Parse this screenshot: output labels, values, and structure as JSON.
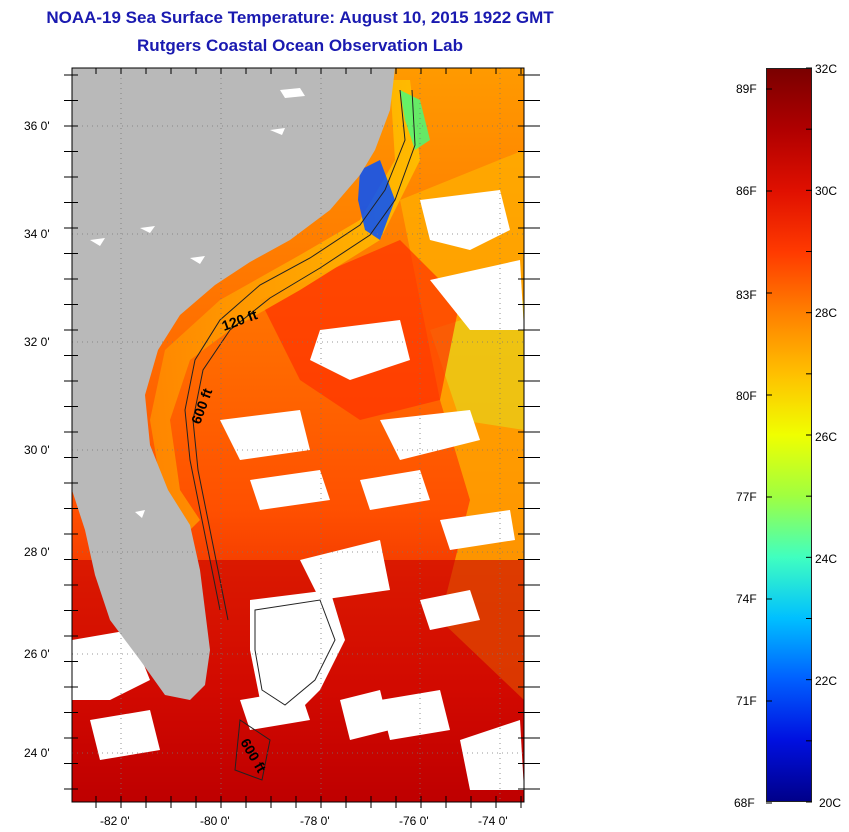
{
  "header": {
    "title": "NOAA-19 Sea Surface Temperature:  August 10, 2015 1922 GMT",
    "subtitle": "Rutgers Coastal Ocean Observation Lab"
  },
  "map": {
    "lat_labels": [
      "36 0'",
      "34 0'",
      "32 0'",
      "30 0'",
      "28 0'",
      "26 0'",
      "24 0'"
    ],
    "lon_labels": [
      "-82 0'",
      "-80 0'",
      "-78 0'",
      "-76 0'",
      "-74 0'"
    ],
    "contour_labels": [
      "120 ft",
      "600 ft",
      "600 ft"
    ]
  },
  "colorbar": {
    "fahrenheit_labels": [
      "89F",
      "86F",
      "83F",
      "80F",
      "77F",
      "74F",
      "71F",
      "68F"
    ],
    "celsius_labels": [
      "32C",
      "30C",
      "28C",
      "26C",
      "24C",
      "22C",
      "20C"
    ],
    "colors": [
      "#7a0000",
      "#b00000",
      "#e01000",
      "#ff3a00",
      "#ff8000",
      "#ffc000",
      "#f0ff00",
      "#a0ff40",
      "#40ffc0",
      "#00c0ff",
      "#0060ff",
      "#0010e0",
      "#00008a"
    ]
  }
}
